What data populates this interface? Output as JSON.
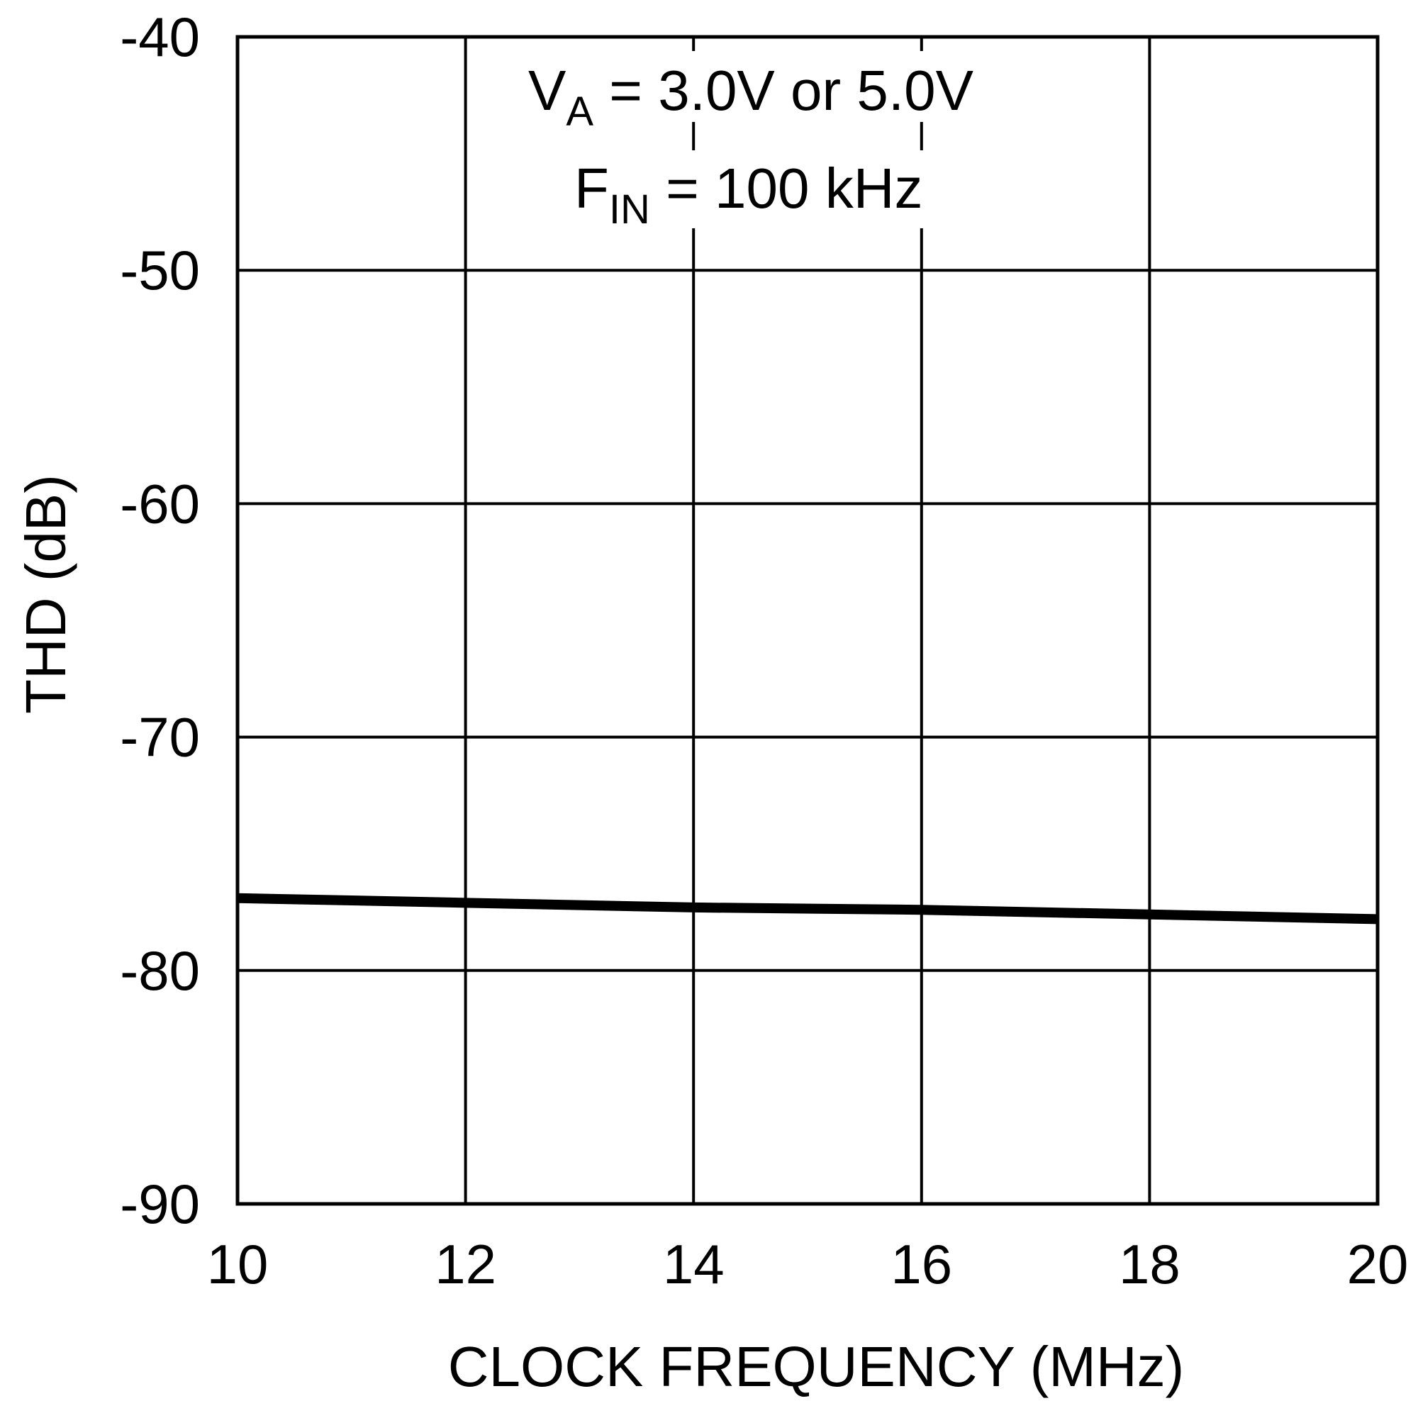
{
  "chart_data": {
    "type": "line",
    "title": "",
    "xlabel": "CLOCK FREQUENCY (MHz)",
    "ylabel": "THD (dB)",
    "xlim": [
      10,
      20
    ],
    "ylim": [
      -90,
      -40
    ],
    "x_ticks": [
      "10",
      "12",
      "14",
      "16",
      "18",
      "20"
    ],
    "y_ticks": [
      "-40",
      "-50",
      "-60",
      "-70",
      "-80",
      "-90"
    ],
    "grid": true,
    "legend": "none",
    "annotations": [
      {
        "main": "V",
        "sub": "A",
        "rest": " = 3.0V or 5.0V"
      },
      {
        "main": "F",
        "sub": "IN",
        "rest": " = 100 kHz"
      }
    ],
    "series": [
      {
        "color": "#000000",
        "x": [
          10,
          12,
          14,
          16,
          18,
          20
        ],
        "y": [
          -76.9,
          -77.1,
          -77.3,
          -77.4,
          -77.6,
          -77.8
        ]
      }
    ]
  }
}
